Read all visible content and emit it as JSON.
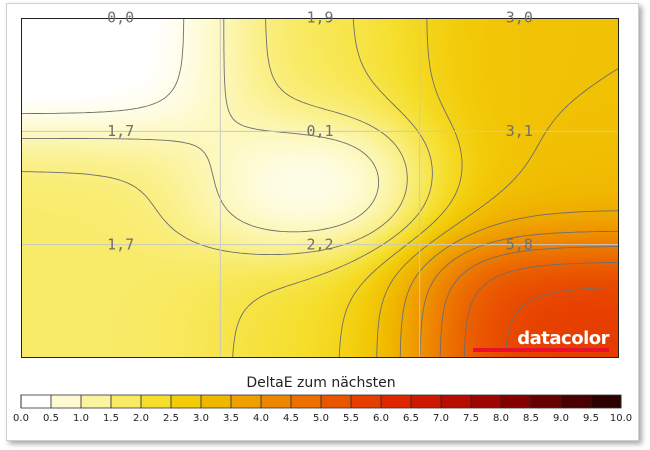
{
  "chart_data": {
    "type": "heatmap",
    "title": "",
    "xlabel": "",
    "ylabel": "",
    "rows": 3,
    "cols": 3,
    "values": [
      [
        0.0,
        1.9,
        3.0
      ],
      [
        1.7,
        0.1,
        3.1
      ],
      [
        1.7,
        2.2,
        5.8
      ]
    ],
    "labels": [
      [
        "0,0",
        "1,9",
        "3,0"
      ],
      [
        "1,7",
        "0,1",
        "3,1"
      ],
      [
        "1,7",
        "2,2",
        "5,8"
      ]
    ],
    "contour_interval": 0.5,
    "grid": true,
    "colorbar": {
      "title": "DeltaE zum nächsten",
      "min": 0.0,
      "max": 10.0,
      "step": 0.5,
      "ticks": [
        "0.0",
        "0.5",
        "1.0",
        "1.5",
        "2.0",
        "2.5",
        "3.0",
        "3.5",
        "4.0",
        "4.5",
        "5.0",
        "5.5",
        "6.0",
        "6.5",
        "7.0",
        "7.5",
        "8.0",
        "8.5",
        "9.0",
        "9.5",
        "10.0"
      ],
      "colors": [
        "#ffffff",
        "#fefbd2",
        "#fbf39f",
        "#f8ea63",
        "#f5de2c",
        "#f2cb09",
        "#f0b700",
        "#ef9f00",
        "#ee8700",
        "#ec6f00",
        "#ea5600",
        "#e63d00",
        "#e02600",
        "#cf1800",
        "#b80c00",
        "#9f0500",
        "#830000",
        "#660000",
        "#4a0000",
        "#2c0000"
      ]
    }
  },
  "brand": {
    "name": "datacolor"
  }
}
